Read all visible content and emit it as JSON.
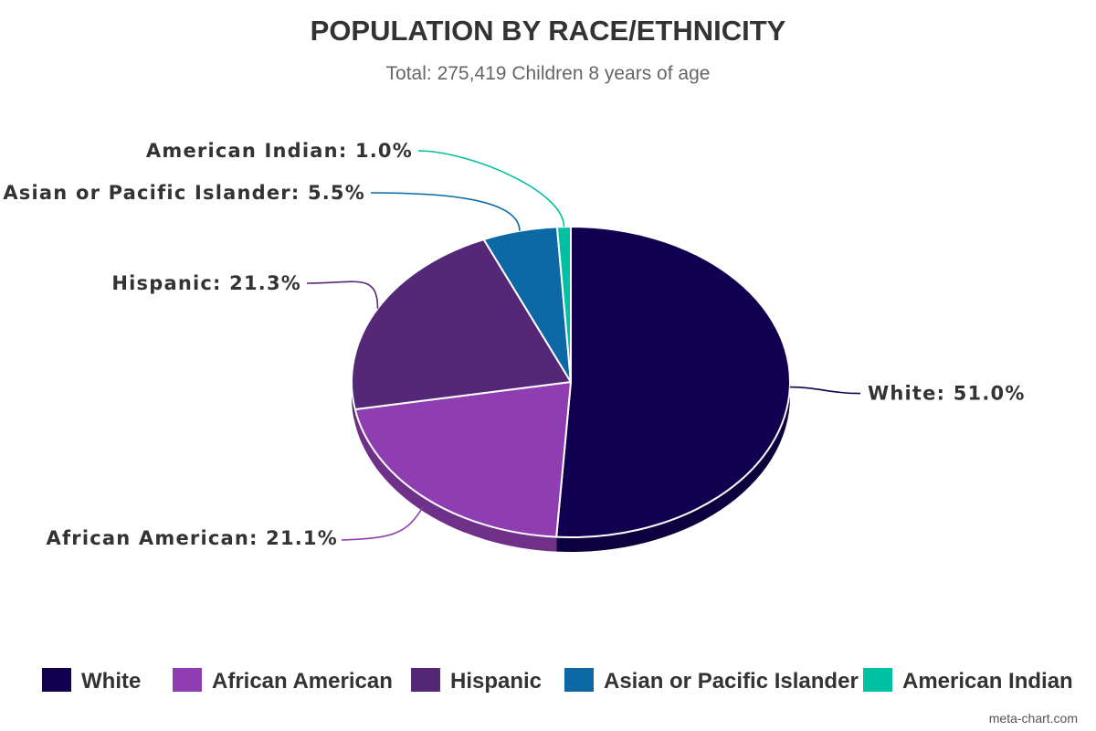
{
  "chart_data": {
    "type": "pie",
    "title": "POPULATION BY RACE/ETHNICITY",
    "subtitle": "Total: 275,419 Children 8 years of age",
    "slices": [
      {
        "name": "White",
        "value": 51.0,
        "label": "White: 51.0%",
        "color": "#10004f"
      },
      {
        "name": "African American",
        "value": 21.1,
        "label": "African American: 21.1%",
        "color": "#8e3eb0"
      },
      {
        "name": "Hispanic",
        "value": 21.3,
        "label": "Hispanic: 21.3%",
        "color": "#542877"
      },
      {
        "name": "Asian or Pacific Islander",
        "value": 5.5,
        "label": "Asian or Pacific Islander: 5.5%",
        "color": "#0c69a5"
      },
      {
        "name": "American Indian",
        "value": 1.0,
        "label": "American Indian: 1.0%",
        "color": "#00c1a2"
      }
    ],
    "legend_position": "bottom",
    "style": "3d"
  },
  "credit": "meta-chart.com"
}
